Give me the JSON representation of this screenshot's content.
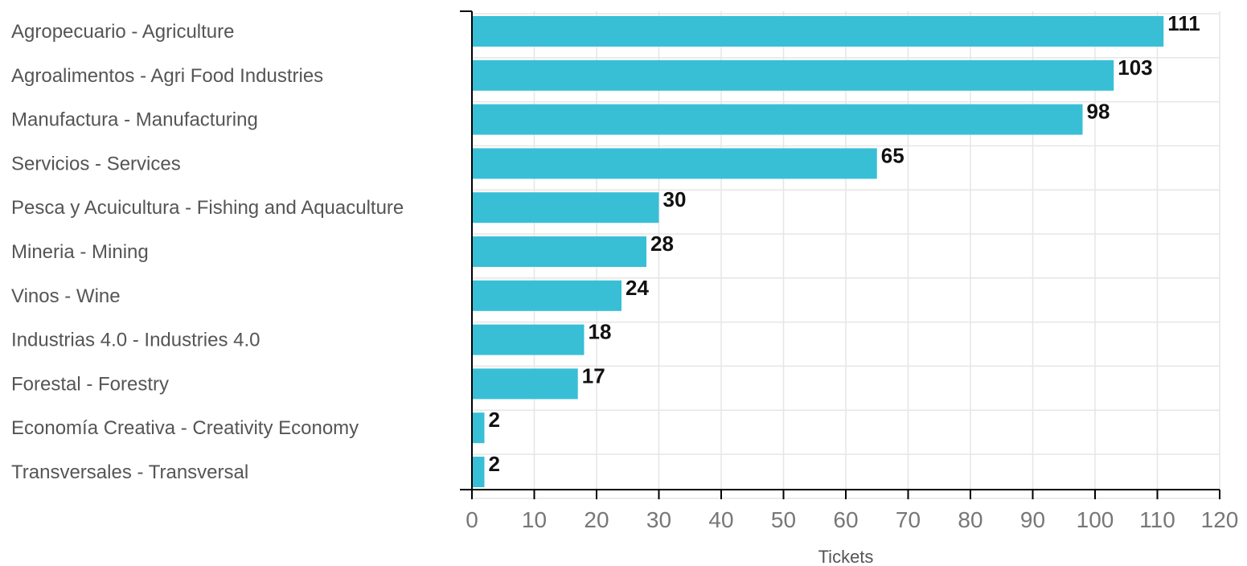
{
  "colors": {
    "bar": "#38BFD6",
    "grid": "#e6e6e6",
    "axis": "#000000"
  },
  "chart_data": {
    "type": "bar",
    "orientation": "horizontal",
    "categories": [
      "Agropecuario - Agriculture",
      "Agroalimentos - Agri Food Industries",
      "Manufactura - Manufacturing",
      "Servicios - Services",
      "Pesca y Acuicultura - Fishing and Aquaculture",
      "Mineria - Mining",
      "Vinos - Wine",
      "Industrias 4.0 - Industries 4.0",
      "Forestal - Forestry",
      "Economía Creativa - Creativity Economy",
      "Transversales - Transversal"
    ],
    "values": [
      111,
      103,
      98,
      65,
      30,
      28,
      24,
      18,
      17,
      2,
      2
    ],
    "xlabel": "Tickets",
    "xlim": [
      0,
      120
    ],
    "xticks": [
      "0",
      "10",
      "20",
      "30",
      "40",
      "50",
      "60",
      "70",
      "80",
      "90",
      "100",
      "110",
      "120"
    ],
    "grid": true,
    "data_labels": true
  }
}
